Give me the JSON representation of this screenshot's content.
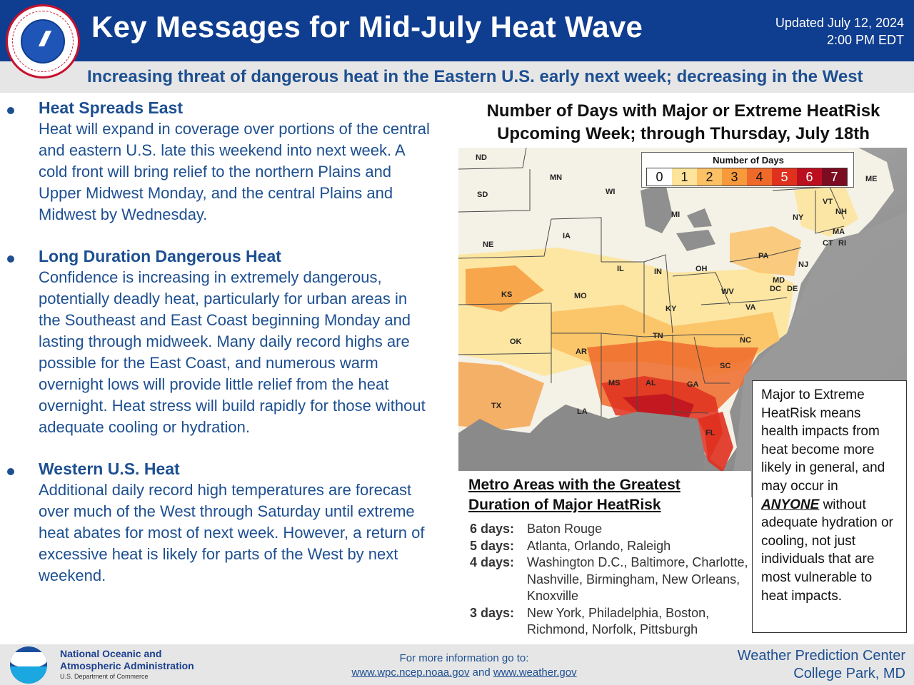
{
  "header": {
    "logo_text": "NATIONAL WEATHER SERVICE",
    "title": "Key Messages for Mid-July Heat Wave",
    "updated_date": "Updated July 12, 2024",
    "updated_time": "2:00 PM EDT"
  },
  "subtitle": "Increasing threat of dangerous heat in the Eastern U.S. early next week; decreasing in the West",
  "bullets": [
    {
      "heading": "Heat Spreads East",
      "body": "Heat will expand in coverage over portions of the central and eastern U.S. late this weekend into next week. A cold front will bring relief to the northern Plains and Upper Midwest Monday, and the central Plains and Midwest by Wednesday."
    },
    {
      "heading": "Long Duration Dangerous Heat",
      "body": "Confidence is increasing in extremely dangerous, potentially deadly heat, particularly for urban areas in the Southeast and East Coast beginning Monday and lasting through midweek. Many daily record highs are possible for the East Coast, and numerous warm overnight lows will provide little relief from the heat overnight. Heat stress will build rapidly for those without adequate cooling or hydration."
    },
    {
      "heading": "Western U.S. Heat",
      "body": "Additional daily record high temperatures are forecast over much of the West through Saturday until extreme heat abates for most of next week. However, a return of excessive heat is likely for parts of the West by next weekend."
    }
  ],
  "map": {
    "title_line1": "Number of Days with Major or Extreme HeatRisk",
    "title_line2": "Upcoming Week; through Thursday, July 18th",
    "legend_title": "Number of Days",
    "legend": [
      {
        "label": "0",
        "color": "#ffffff"
      },
      {
        "label": "1",
        "color": "#fde49a"
      },
      {
        "label": "2",
        "color": "#fbc164"
      },
      {
        "label": "3",
        "color": "#f69a3c"
      },
      {
        "label": "4",
        "color": "#ef6a2a"
      },
      {
        "label": "5",
        "color": "#e0301e"
      },
      {
        "label": "6",
        "color": "#bb0f1f"
      },
      {
        "label": "7",
        "color": "#7c0c22"
      }
    ],
    "state_labels": [
      "ND",
      "MN",
      "SD",
      "WI",
      "MI",
      "ME",
      "VT",
      "NH",
      "NY",
      "MA",
      "CT",
      "RI",
      "IA",
      "NE",
      "PA",
      "NJ",
      "IL",
      "IN",
      "OH",
      "MD",
      "DC",
      "DE",
      "KS",
      "MO",
      "WV",
      "VA",
      "KY",
      "TN",
      "NC",
      "OK",
      "AR",
      "SC",
      "MS",
      "AL",
      "GA",
      "TX",
      "LA",
      "FL"
    ]
  },
  "metro": {
    "title_line1": "Metro Areas with the Greatest",
    "title_line2": "Duration of Major HeatRisk",
    "rows": [
      {
        "days": "6 days:",
        "cities": "Baton Rouge"
      },
      {
        "days": "5 days:",
        "cities": "Atlanta, Orlando, Raleigh"
      },
      {
        "days": "4 days:",
        "cities": "Washington D.C., Baltimore, Charlotte, Nashville, Birmingham, New Orleans, Knoxville"
      },
      {
        "days": "3 days:",
        "cities": "New York, Philadelphia, Boston, Richmond, Norfolk, Pittsburgh"
      }
    ]
  },
  "info_box": {
    "text_before": "Major to Extreme HeatRisk means health impacts from heat become more likely in general, and may occur in",
    "emphasis": "ANYONE",
    "text_after": "without adequate hydration or cooling, not just individuals that are most vulnerable to heat impacts."
  },
  "footer": {
    "noaa_logo_text": "NOAA",
    "noaa_name_line1": "National Oceanic and",
    "noaa_name_line2": "Atmospheric Administration",
    "noaa_dept": "U.S. Department of Commerce",
    "more_info_label": "For more information go to:",
    "link1": "www.wpc.ncep.noaa.gov",
    "link_and": "and",
    "link2": "www.weather.gov",
    "wpc_line1": "Weather Prediction Center",
    "wpc_line2": "College Park, MD"
  }
}
